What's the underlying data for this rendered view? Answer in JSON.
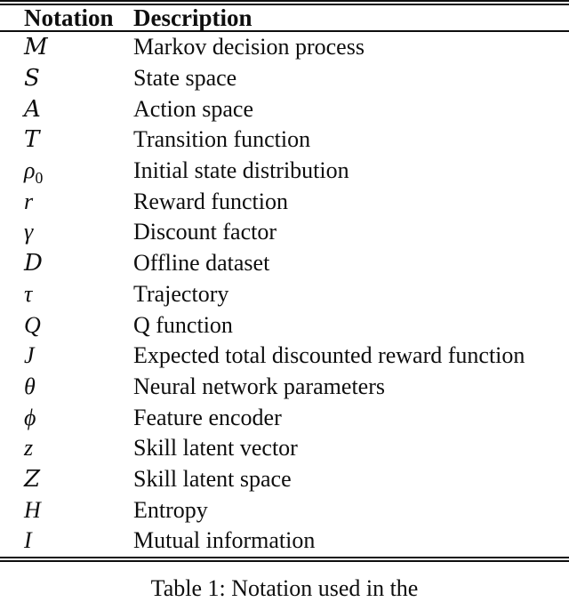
{
  "page": {
    "background": "#ffffff",
    "text_color": "#0e0e0e",
    "rule_color": "#0e0e0e"
  },
  "table": {
    "headers": [
      {
        "label": "Notation"
      },
      {
        "label": "Description"
      }
    ],
    "rows": [
      {
        "notation": "M",
        "notation_variant": "script",
        "description": "Markov decision process"
      },
      {
        "notation": "S",
        "notation_variant": "script",
        "description": "State space"
      },
      {
        "notation": "A",
        "notation_variant": "script",
        "description": "Action space"
      },
      {
        "notation": "T",
        "notation_variant": "script",
        "description": "Transition function"
      },
      {
        "notation": "ρ",
        "notation_subscript": "0",
        "notation_variant": "italic",
        "description": "Initial state distribution"
      },
      {
        "notation": "r",
        "notation_variant": "italic",
        "description": "Reward function"
      },
      {
        "notation": "γ",
        "notation_variant": "italic",
        "description": "Discount factor"
      },
      {
        "notation": "D",
        "notation_variant": "script",
        "description": "Offline dataset"
      },
      {
        "notation": "τ",
        "notation_variant": "italic",
        "description": "Trajectory"
      },
      {
        "notation": "Q",
        "notation_variant": "italic",
        "description": "Q function"
      },
      {
        "notation": "J",
        "notation_variant": "italic",
        "description": "Expected total discounted reward function"
      },
      {
        "notation": "θ",
        "notation_variant": "italic",
        "description": "Neural network parameters"
      },
      {
        "notation": "ϕ",
        "notation_variant": "italic",
        "description": "Feature encoder"
      },
      {
        "notation": "z",
        "notation_variant": "italic",
        "description": "Skill latent vector"
      },
      {
        "notation": "Z",
        "notation_variant": "script",
        "description": "Skill latent space"
      },
      {
        "notation": "H",
        "notation_variant": "italic",
        "description": "Entropy"
      },
      {
        "notation": "I",
        "notation_variant": "italic",
        "description": "Mutual information"
      }
    ],
    "caption": "Table 1: Notation used in the"
  }
}
